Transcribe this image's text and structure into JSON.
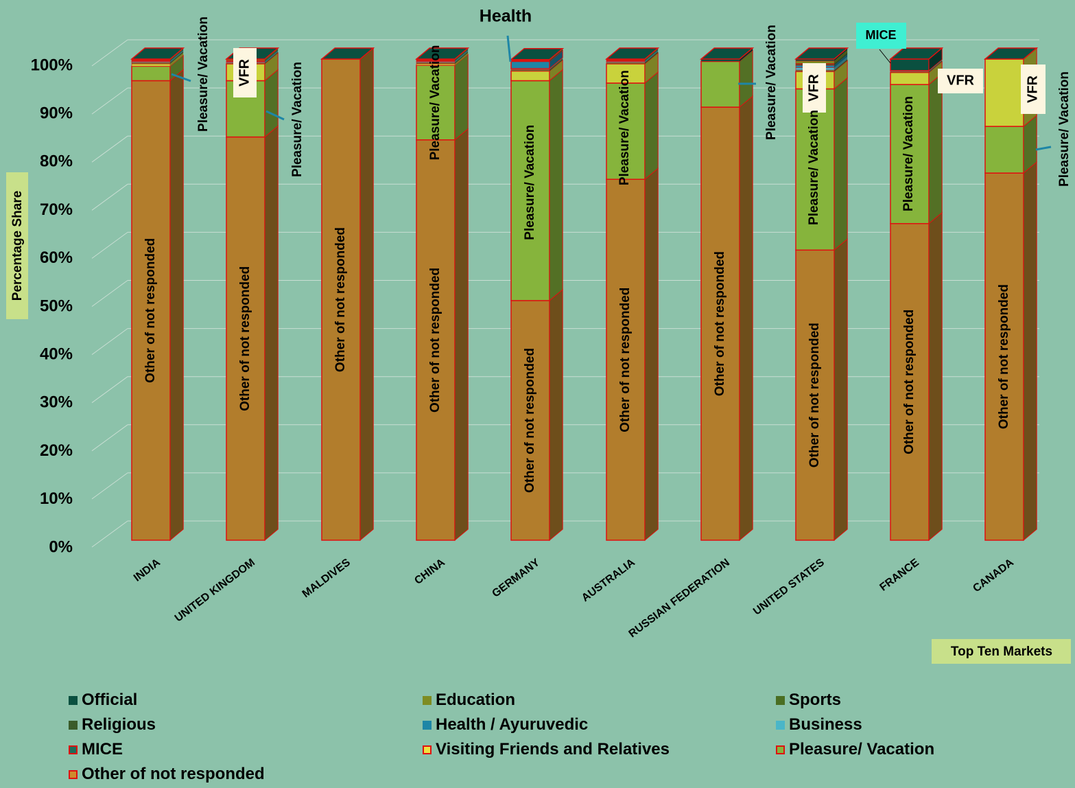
{
  "chart_data": {
    "type": "bar",
    "stacked": true,
    "three_d": true,
    "categories": [
      "INDIA",
      "UNITED KINGDOM",
      "MALDIVES",
      "CHINA",
      "GERMANY",
      "AUSTRALIA",
      "RUSSIAN FEDERATION",
      "UNITED STATES",
      "FRANCE",
      "CANADA"
    ],
    "series": [
      {
        "name": "Other of not responded",
        "color": "#b27d2c",
        "values": [
          95.5,
          83.8,
          100,
          83.2,
          49.8,
          75.0,
          90.0,
          60.3,
          65.8,
          76.3
        ]
      },
      {
        "name": "Pleasure/ Vacation",
        "color": "#86b43c",
        "values": [
          3.0,
          11.7,
          0,
          15.5,
          45.7,
          20.0,
          9.5,
          33.5,
          28.9,
          9.7
        ]
      },
      {
        "name": "Visiting Friends and Relatives",
        "color": "#c9d23c",
        "values": [
          0.5,
          3.5,
          0,
          0.3,
          2.0,
          4.0,
          0,
          3.6,
          2.5,
          14.0
        ]
      },
      {
        "name": "MICE",
        "color": "#5c7c3c",
        "values": [
          0.3,
          0.2,
          0,
          0.3,
          0.3,
          0.3,
          0,
          0.3,
          0.2,
          0
        ]
      },
      {
        "name": "Business",
        "color": "#4ab6c8",
        "values": [
          0.2,
          0.2,
          0,
          0.2,
          0.2,
          0.2,
          0,
          0.5,
          0.2,
          0
        ]
      },
      {
        "name": "Health / Ayuruvedic",
        "color": "#1e86a6",
        "values": [
          0.1,
          0.1,
          0,
          0.1,
          1.5,
          0.1,
          0,
          0.5,
          0,
          0
        ]
      },
      {
        "name": "Religious",
        "color": "#3a5c2a",
        "values": [
          0.1,
          0.1,
          0,
          0.1,
          0.1,
          0.1,
          0,
          0.2,
          0,
          0
        ]
      },
      {
        "name": "Sports",
        "color": "#4a6e22",
        "values": [
          0.1,
          0.1,
          0,
          0.1,
          0.1,
          0.1,
          0,
          0.2,
          0,
          0
        ]
      },
      {
        "name": "Education",
        "color": "#7e8c22",
        "values": [
          0.1,
          0.2,
          0,
          0.1,
          0.1,
          0.1,
          0,
          0.5,
          0,
          0
        ]
      },
      {
        "name": "Official",
        "color": "#0a5040",
        "values": [
          0.1,
          0.1,
          0,
          0.1,
          0.1,
          0.1,
          0.5,
          0.4,
          2.4,
          0
        ]
      }
    ],
    "ylim": [
      0,
      100
    ],
    "yticks": [
      "0%",
      "10%",
      "20%",
      "30%",
      "40%",
      "50%",
      "60%",
      "70%",
      "80%",
      "90%",
      "100%"
    ],
    "ylabel": "Percentage Share",
    "xlabel": "Top Ten Markets",
    "annotations": [
      {
        "text": "Pleasure/ Vacation",
        "bar": 0
      },
      {
        "text": "VFR",
        "bar": 1
      },
      {
        "text": "Pleasure/ Vacation",
        "bar": 1
      },
      {
        "text": "Pleasure/ Vacation",
        "bar": 3
      },
      {
        "text": "Health",
        "bar": 4
      },
      {
        "text": "Pleasure/ Vacation",
        "bar": 4
      },
      {
        "text": "Pleasure/ Vacation",
        "bar": 5
      },
      {
        "text": "Pleasure/ Vacation",
        "bar": 6
      },
      {
        "text": "VFR",
        "bar": 7
      },
      {
        "text": "Pleasure/ Vacation",
        "bar": 7
      },
      {
        "text": "MICE",
        "bar": 8
      },
      {
        "text": "VFR",
        "bar": 8
      },
      {
        "text": "Pleasure/ Vacation",
        "bar": 8
      },
      {
        "text": "VFR",
        "bar": 9
      },
      {
        "text": "Pleasure/ Vacation",
        "bar": 9
      }
    ],
    "bar_label": "Other of not responded",
    "legend_position": "bottom"
  },
  "legend": {
    "items": [
      {
        "label": "Official",
        "swatch": "#0a5040",
        "border": "#0a5040"
      },
      {
        "label": "Education",
        "swatch": "#7e8c22",
        "border": "#7e8c22"
      },
      {
        "label": "Sports",
        "swatch": "#4a6e22",
        "border": "#4a6e22"
      },
      {
        "label": "Religious",
        "swatch": "#3a5c2a",
        "border": "#3a5c2a"
      },
      {
        "label": "Health / Ayuruvedic",
        "swatch": "#1e86a6",
        "border": "#1e86a6"
      },
      {
        "label": "Business",
        "swatch": "#4ab6c8",
        "border": "#4ab6c8"
      },
      {
        "label": "MICE",
        "swatch": "#1e6e5a",
        "border": "#e01010"
      },
      {
        "label": "Visiting Friends and Relatives",
        "swatch": "#f0e040",
        "border": "#e01010"
      },
      {
        "label": "Pleasure/ Vacation",
        "swatch": "#86b43c",
        "border": "#e01010"
      },
      {
        "label": "Other of not responded",
        "swatch": "#d08a2c",
        "border": "#e01010"
      }
    ]
  }
}
